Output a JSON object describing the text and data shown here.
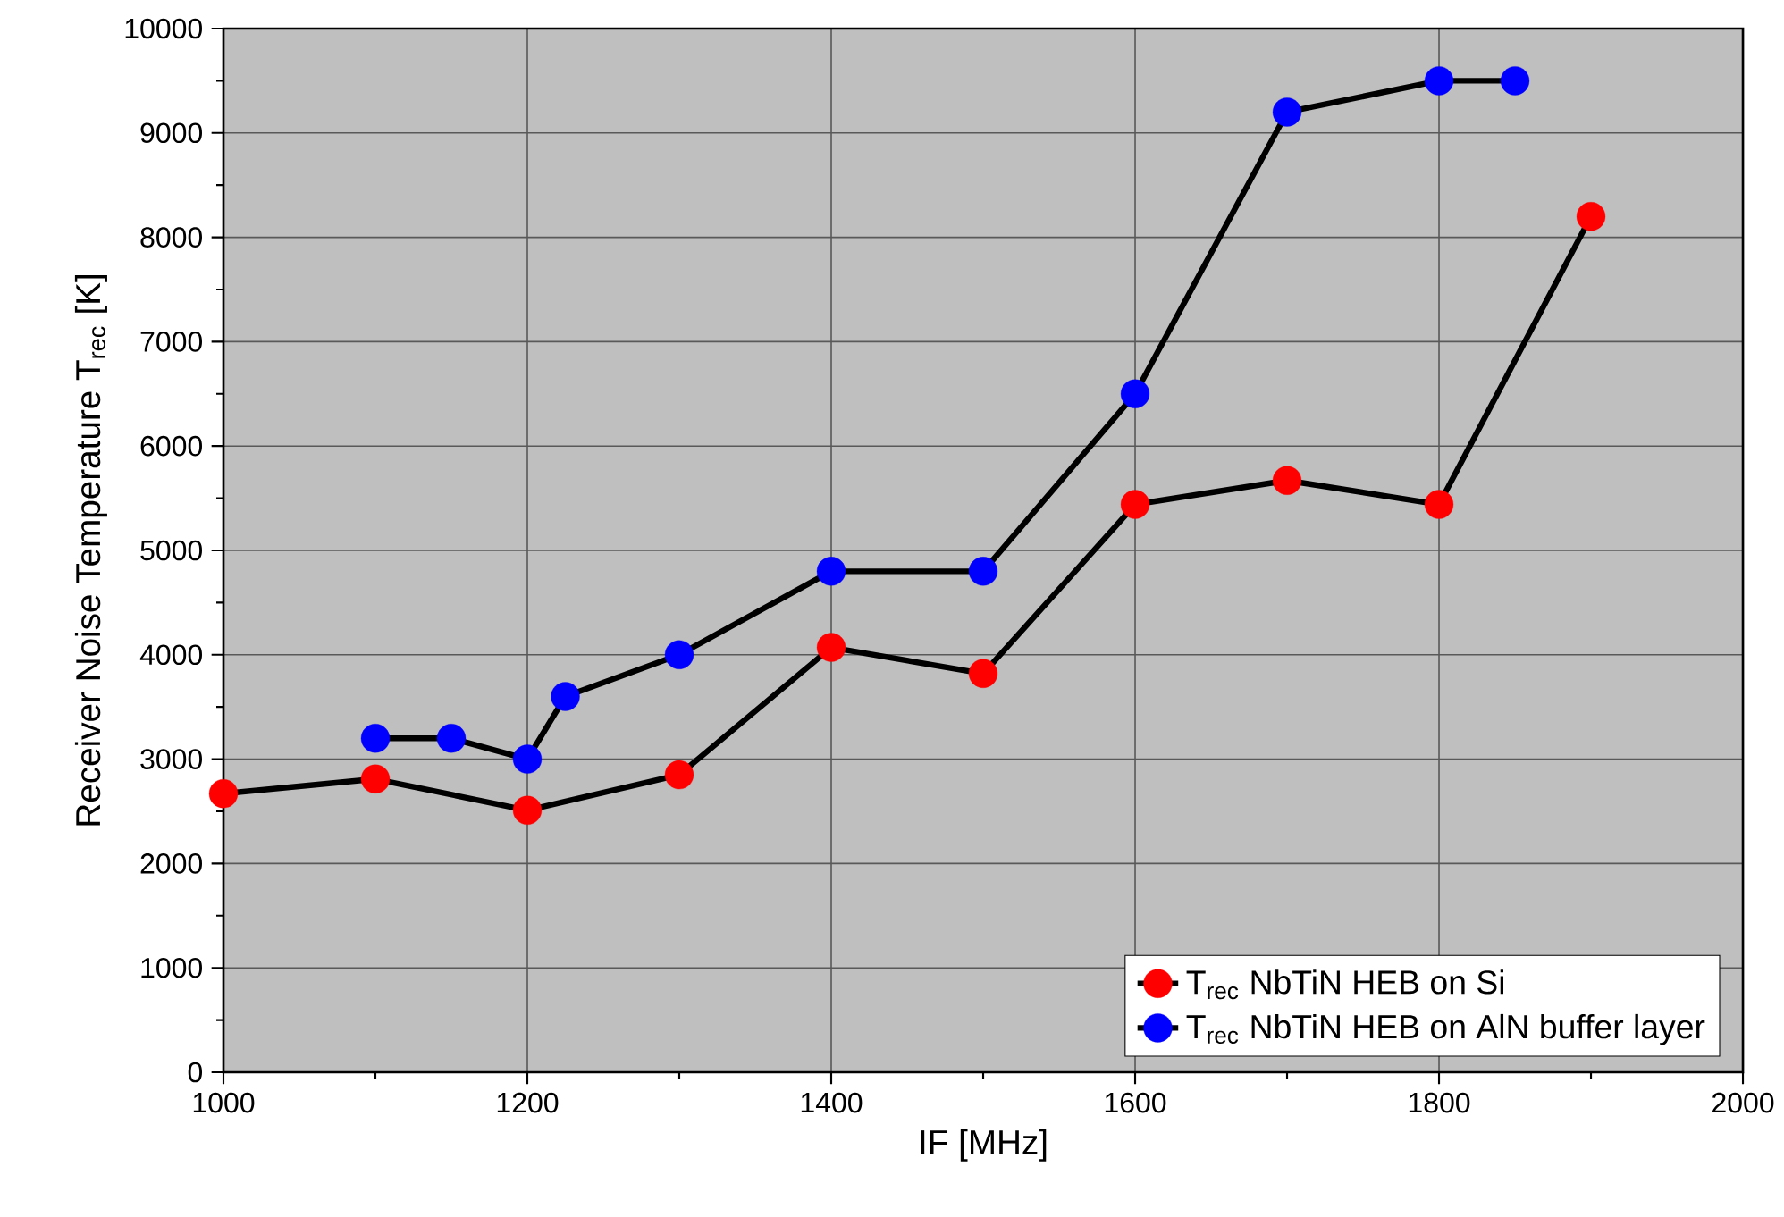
{
  "chart_data": {
    "type": "line",
    "xlabel": "IF [MHz]",
    "ylabel": "Receiver Noise Temperature T$_{rec}$ [K]",
    "xlim": [
      1000,
      2000
    ],
    "xticks": [
      1000,
      1200,
      1400,
      1600,
      1800,
      2000
    ],
    "ylim": [
      0,
      10000
    ],
    "yticks": [
      0,
      1000,
      2000,
      3000,
      4000,
      5000,
      6000,
      7000,
      8000,
      9000,
      10000
    ],
    "grid": true,
    "legend": "bottom right",
    "marker": "circle",
    "line_style": "solid",
    "series": [
      {
        "name": "T$_{rec}$ NbTiN HEB on Si",
        "color": "#ff0000",
        "x": [
          1000,
          1100,
          1200,
          1300,
          1400,
          1500,
          1600,
          1700,
          1800,
          1900
        ],
        "values": [
          2670,
          2810,
          2510,
          2850,
          4070,
          3820,
          5440,
          5670,
          5440,
          8200
        ]
      },
      {
        "name": "T$_{rec}$ NbTiN HEB on AlN buffer layer",
        "color": "#0000ff",
        "x": [
          1100,
          1150,
          1200,
          1225,
          1300,
          1400,
          1500,
          1600,
          1700,
          1800,
          1850
        ],
        "values": [
          3200,
          3200,
          3000,
          3600,
          4000,
          4800,
          4800,
          6500,
          9200,
          9500,
          9500
        ]
      }
    ]
  }
}
